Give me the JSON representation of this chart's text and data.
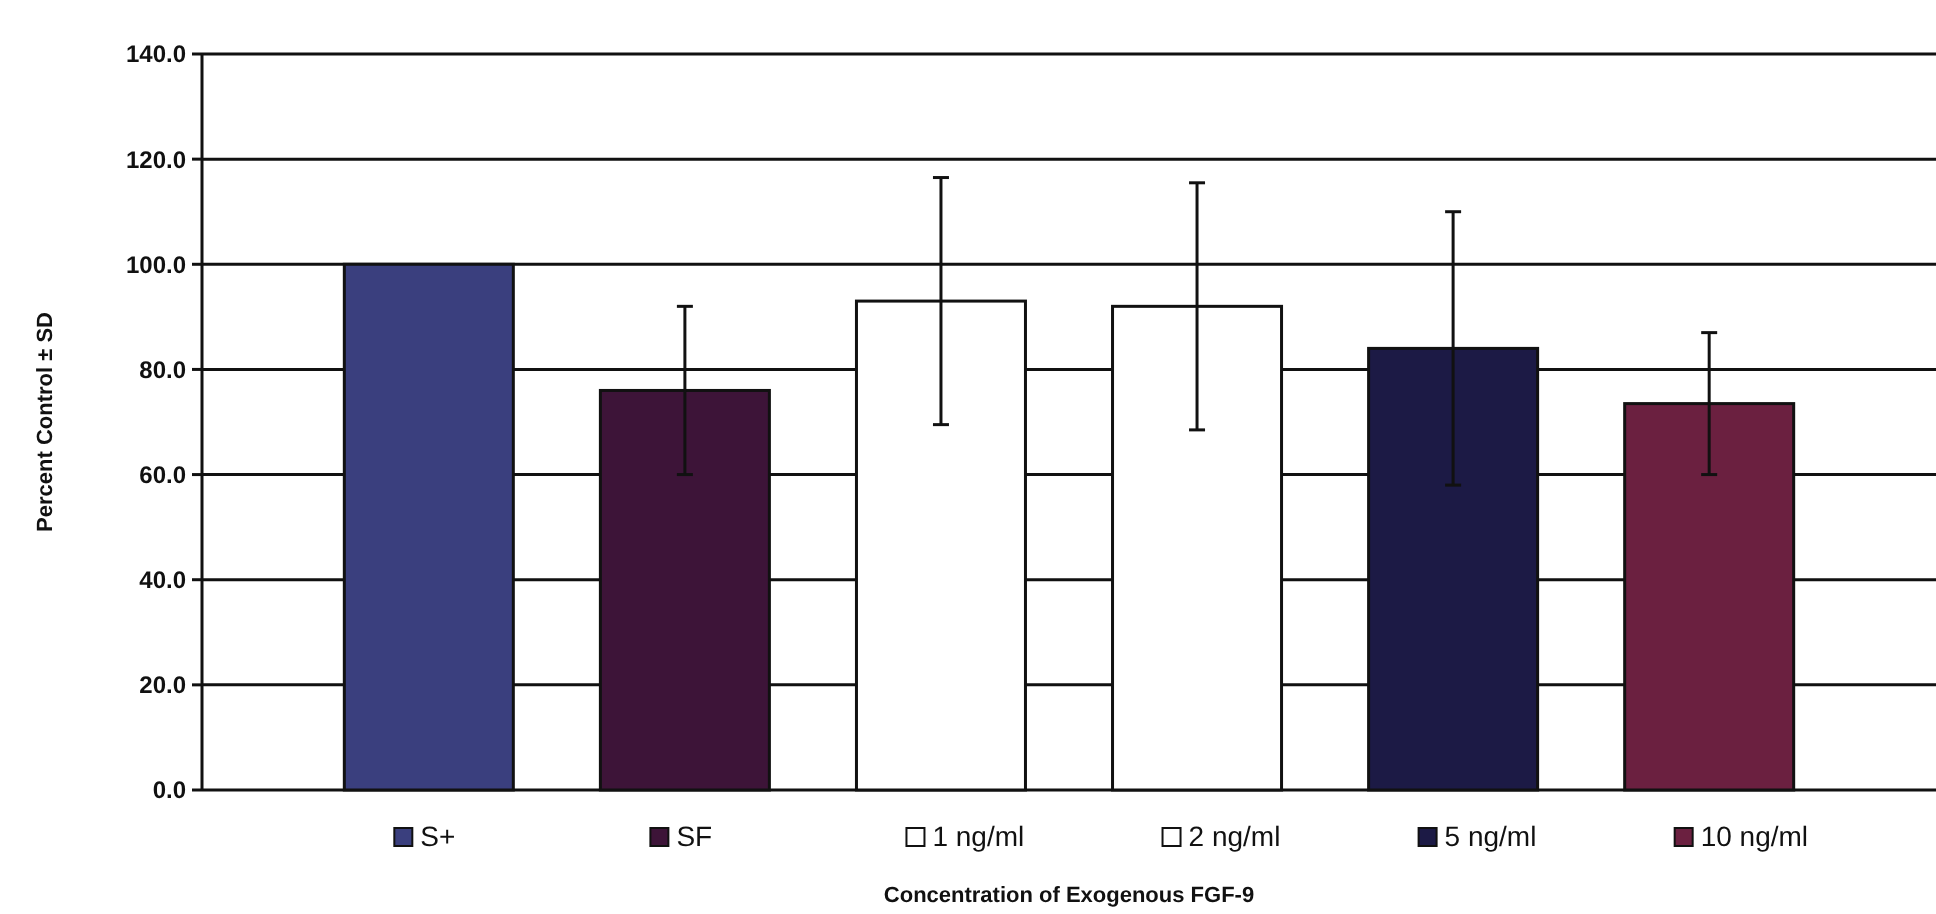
{
  "chart_data": {
    "type": "bar",
    "xlabel": "Concentration of Exogenous FGF-9",
    "ylabel": "Percent Control ± SD",
    "categories": [
      null
    ],
    "series": [
      {
        "name": "S+",
        "color": "#3a3f7e",
        "values": [
          100
        ]
      },
      {
        "name": "SF",
        "color": "#3d1438",
        "values": [
          76
        ],
        "errors": [
          16
        ]
      },
      {
        "name": "1 ng/ml",
        "color": "#ffffff",
        "values": [
          93
        ],
        "errors": [
          23.5
        ]
      },
      {
        "name": "2 ng/ml",
        "color": "#ffffff",
        "values": [
          92
        ],
        "errors": [
          23.5
        ]
      },
      {
        "name": "5 ng/ml",
        "color": "#1c1a45",
        "values": [
          84
        ],
        "errors": [
          26
        ]
      },
      {
        "name": "10 ng/ml",
        "color": "#6b2040",
        "values": [
          73.5
        ],
        "errors": [
          13.5
        ]
      }
    ],
    "ylim": [
      0,
      140
    ],
    "yticks": [
      {
        "value": 0,
        "label": "0.0"
      },
      {
        "value": 20,
        "label": "20.0"
      },
      {
        "value": 40,
        "label": "40.0"
      },
      {
        "value": 60,
        "label": "60.0"
      },
      {
        "value": 80,
        "label": "80.0"
      },
      {
        "value": 100,
        "label": "100.0"
      },
      {
        "value": 120,
        "label": "120.0"
      },
      {
        "value": 140,
        "label": "140.0"
      }
    ],
    "grid": "y",
    "legend": "bottom"
  }
}
